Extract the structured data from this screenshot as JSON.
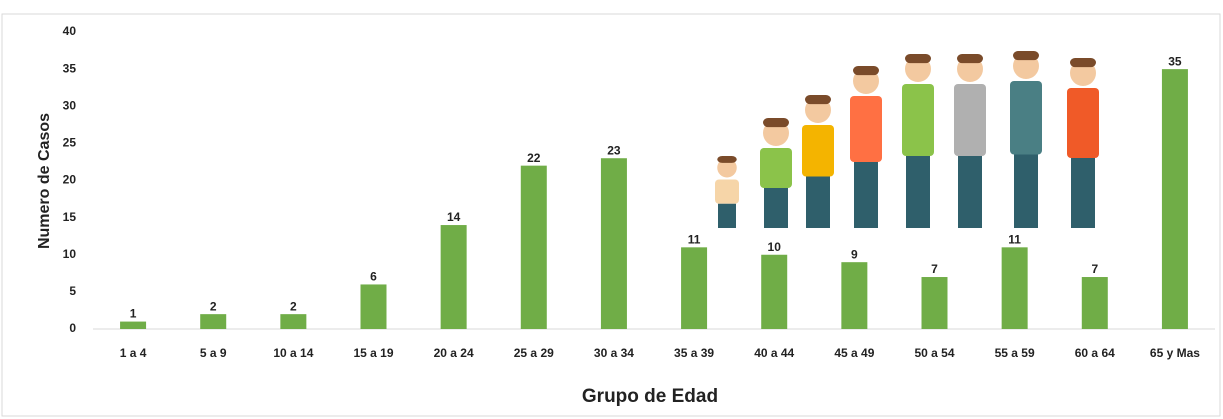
{
  "chart_data": {
    "type": "bar",
    "x_label": "Grupo de Edad",
    "y_label": "Numero de Casos",
    "categories": [
      "1 a 4",
      "5 a 9",
      "10 a 14",
      "15 a 19",
      "20 a 24",
      "25 a 29",
      "30 a 34",
      "35 a 39",
      "40 a 44",
      "45 a 49",
      "50 a 54",
      "55 a 59",
      "60 a 64",
      "65 y Mas"
    ],
    "values": [
      1,
      2,
      2,
      6,
      14,
      22,
      23,
      11,
      10,
      9,
      7,
      11,
      7,
      35
    ],
    "color": "#70ad47",
    "ylim": [
      0,
      40
    ],
    "yticks": [
      0,
      5,
      10,
      15,
      20,
      25,
      30,
      35,
      40
    ],
    "grid": false
  }
}
